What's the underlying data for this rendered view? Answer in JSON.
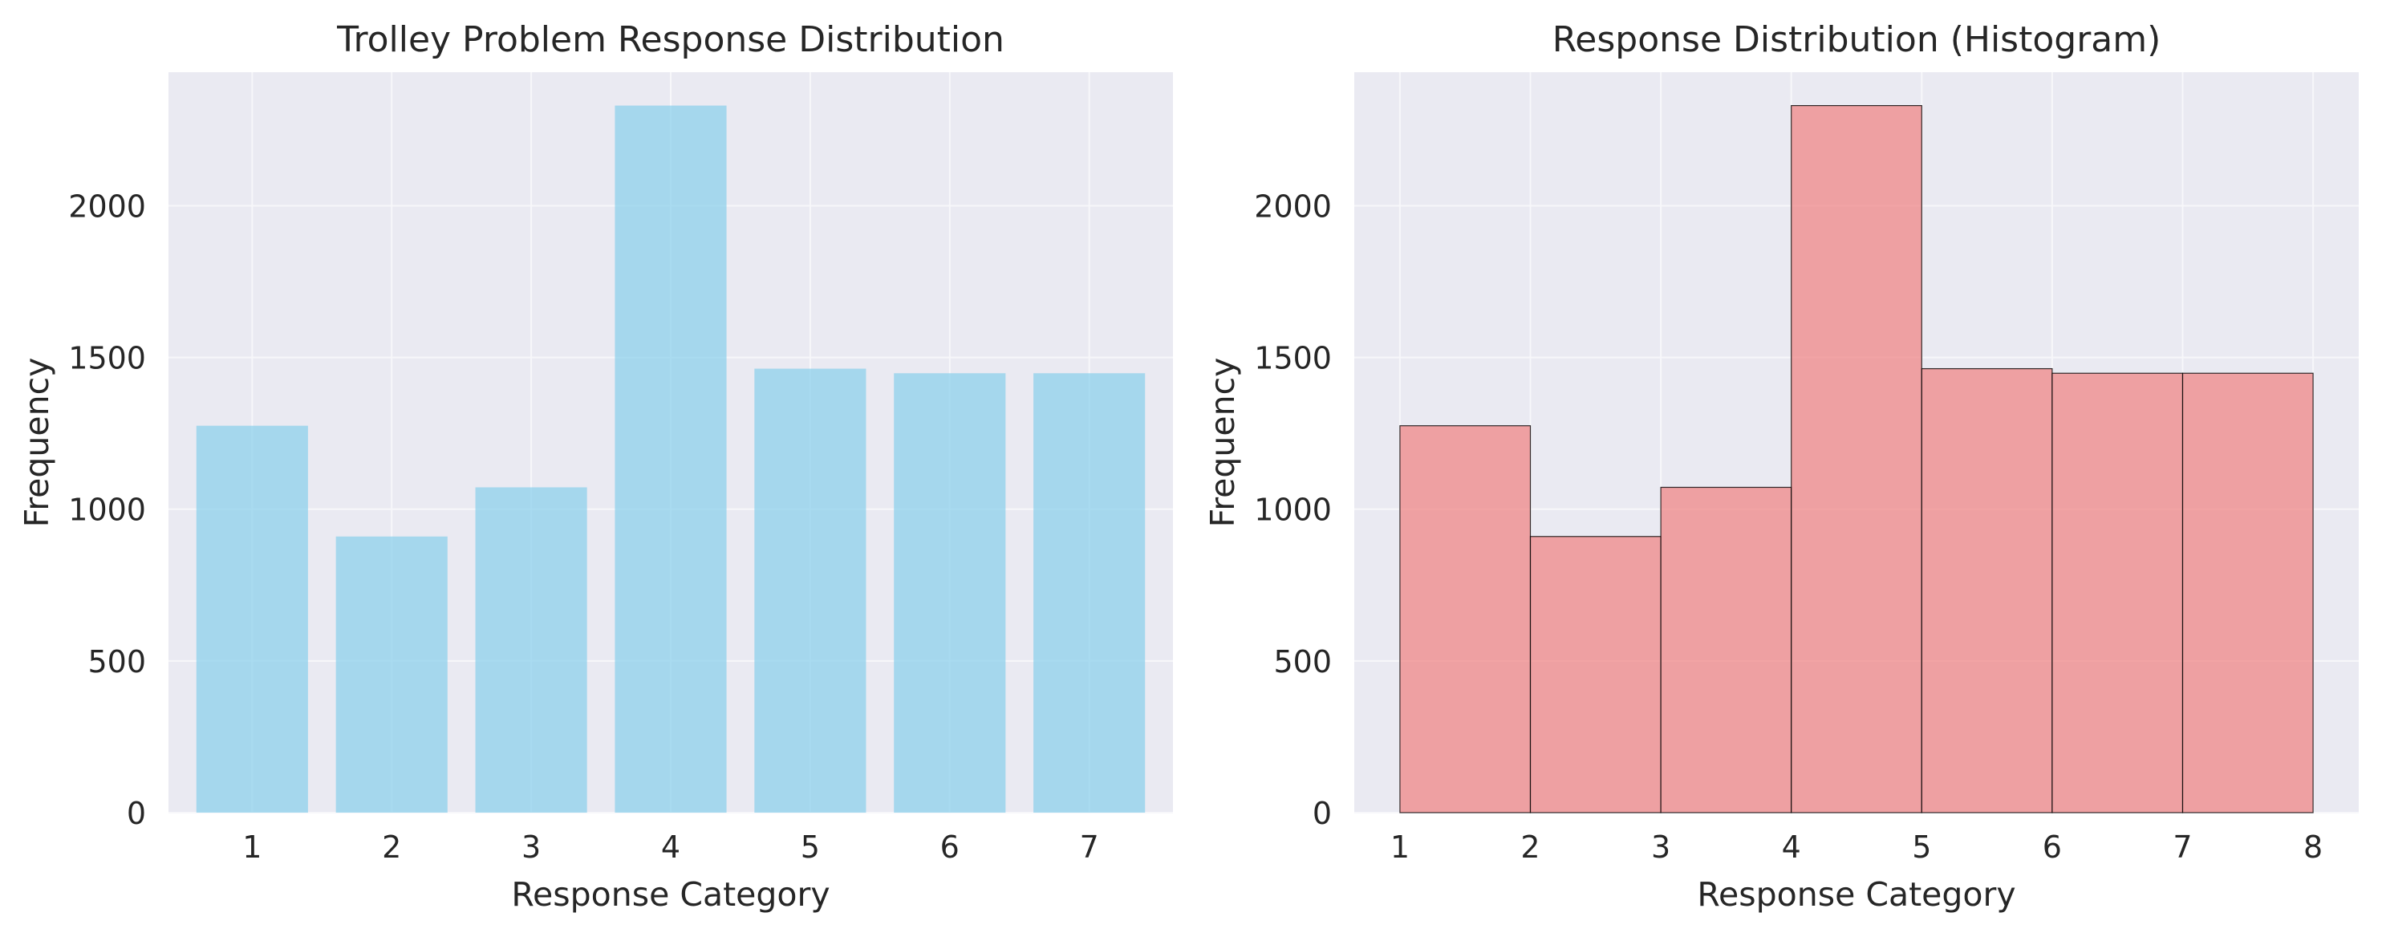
{
  "chart_data": [
    {
      "type": "bar",
      "title": "Trolley Problem Response Distribution",
      "xlabel": "Response Category",
      "ylabel": "Frequency",
      "categories": [
        "1",
        "2",
        "3",
        "4",
        "5",
        "6",
        "7"
      ],
      "values": [
        1275,
        910,
        1072,
        2330,
        1463,
        1448,
        1448
      ],
      "ylim": [
        0,
        2440
      ],
      "yticks": [
        "0",
        "500",
        "1000",
        "1500",
        "2000"
      ],
      "grid": true,
      "color": "#87ceeb"
    },
    {
      "type": "bar",
      "title": "Response Distribution (Histogram)",
      "xlabel": "Response Category",
      "ylabel": "Frequency",
      "bin_edges": [
        1,
        2,
        3,
        4,
        5,
        6,
        7,
        8
      ],
      "values": [
        1275,
        910,
        1072,
        2330,
        1463,
        1448,
        1448
      ],
      "xticks": [
        "1",
        "2",
        "3",
        "4",
        "5",
        "6",
        "7",
        "8"
      ],
      "ylim": [
        0,
        2440
      ],
      "yticks": [
        "0",
        "500",
        "1000",
        "1500",
        "2000"
      ],
      "grid": true,
      "color": "#f08080",
      "edgecolor": "#000000"
    }
  ]
}
